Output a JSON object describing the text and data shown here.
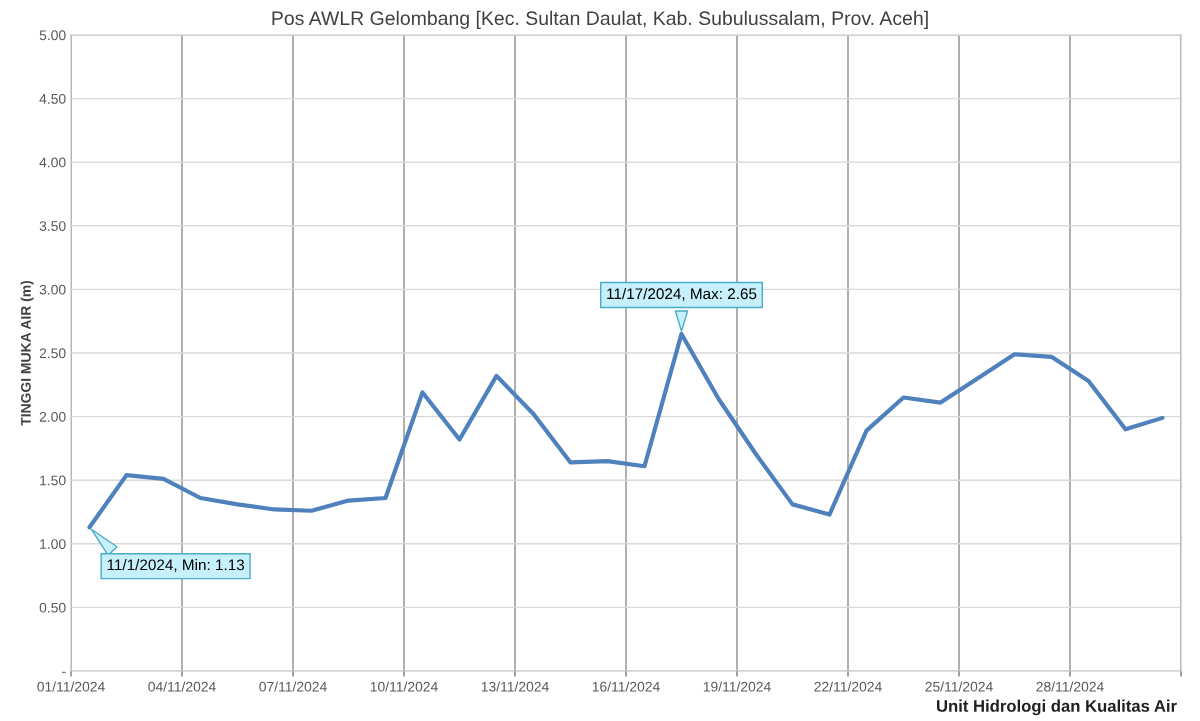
{
  "chart_data": {
    "type": "line",
    "title": "Pos AWLR Gelombang [Kec. Sultan Daulat, Kab. Subulussalam, Prov. Aceh]",
    "ylabel": "TINGGI MUKA AIR (m)",
    "x": [
      "2024-11-01T12:00",
      "2024-11-02T12:00",
      "2024-11-03T12:00",
      "2024-11-04T12:00",
      "2024-11-05T12:00",
      "2024-11-06T12:00",
      "2024-11-07T12:00",
      "2024-11-08T12:00",
      "2024-11-09T12:00",
      "2024-11-10T12:00",
      "2024-11-11T12:00",
      "2024-11-12T12:00",
      "2024-11-13T12:00",
      "2024-11-14T12:00",
      "2024-11-15T12:00",
      "2024-11-16T12:00",
      "2024-11-17T12:00",
      "2024-11-18T12:00",
      "2024-11-19T12:00",
      "2024-11-20T12:00",
      "2024-11-21T12:00",
      "2024-11-22T12:00",
      "2024-11-23T12:00",
      "2024-11-24T12:00",
      "2024-11-25T12:00",
      "2024-11-26T12:00",
      "2024-11-27T12:00",
      "2024-11-28T12:00",
      "2024-11-29T12:00",
      "2024-11-30T12:00"
    ],
    "series": [
      {
        "color": "#4f81bd",
        "values": [
          1.13,
          1.54,
          1.51,
          1.36,
          1.31,
          1.27,
          1.26,
          1.34,
          1.36,
          2.19,
          1.82,
          2.32,
          2.02,
          1.64,
          1.65,
          1.61,
          2.65,
          2.14,
          1.71,
          1.31,
          1.23,
          1.89,
          2.15,
          2.11,
          2.3,
          2.49,
          2.47,
          2.28,
          1.9,
          1.99
        ]
      }
    ],
    "xlim": [
      "2024-11-01",
      "2024-12-01"
    ],
    "xticks": [
      {
        "value": "2024-11-01",
        "label": "01/11/2024"
      },
      {
        "value": "2024-11-04",
        "label": "04/11/2024"
      },
      {
        "value": "2024-11-07",
        "label": "07/11/2024"
      },
      {
        "value": "2024-11-10",
        "label": "10/11/2024"
      },
      {
        "value": "2024-11-13",
        "label": "13/11/2024"
      },
      {
        "value": "2024-11-16",
        "label": "16/11/2024"
      },
      {
        "value": "2024-11-19",
        "label": "19/11/2024"
      },
      {
        "value": "2024-11-22",
        "label": "22/11/2024"
      },
      {
        "value": "2024-11-25",
        "label": "25/11/2024"
      },
      {
        "value": "2024-11-28",
        "label": "28/11/2024"
      },
      {
        "value": "2024-12-01",
        "label": null
      }
    ],
    "ylim": [
      0,
      5
    ],
    "yticks": [
      {
        "value": 0,
        "label": "-"
      },
      {
        "value": 0.5,
        "label": "0.50"
      },
      {
        "value": 1,
        "label": "1.00"
      },
      {
        "value": 1.5,
        "label": "1.50"
      },
      {
        "value": 2,
        "label": "2.00"
      },
      {
        "value": 2.5,
        "label": "2.50"
      },
      {
        "value": 3,
        "label": "3.00"
      },
      {
        "value": 3.5,
        "label": "3.50"
      },
      {
        "value": 4,
        "label": "4.00"
      },
      {
        "value": 4.5,
        "label": "4.50"
      },
      {
        "value": 5,
        "label": "5.00"
      }
    ],
    "grid": true,
    "annotations": [
      {
        "text": "11/1/2024, Min: 1.13",
        "x": "2024-11-01T12:00",
        "y": 1.13
      },
      {
        "text": "11/17/2024, Max: 2.65",
        "x": "2024-11-17T12:00",
        "y": 2.65
      },
      "Unit Hidrologi dan Kualitas Air"
    ]
  }
}
